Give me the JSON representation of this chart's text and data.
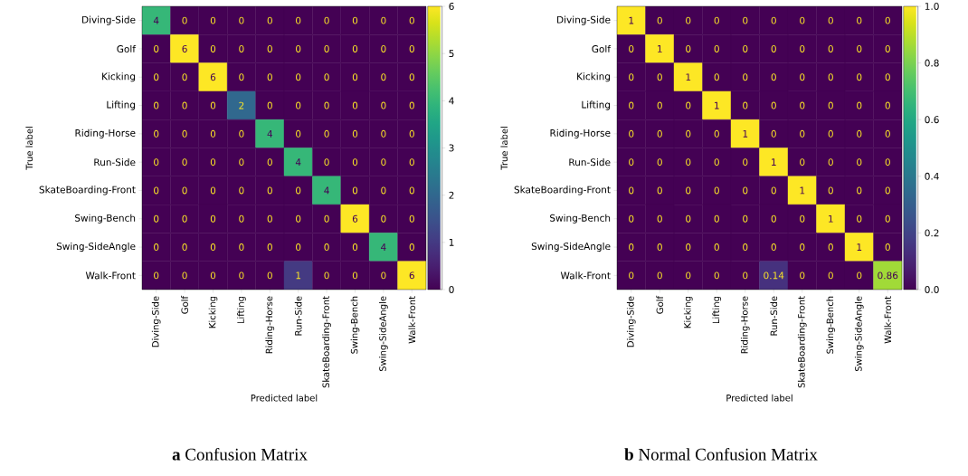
{
  "chart_data": [
    {
      "type": "heatmap",
      "title": "**a** Confusion Matrix",
      "xlabel": "Predicted label",
      "ylabel": "True label",
      "categories": [
        "Diving-Side",
        "Golf",
        "Kicking",
        "Lifting",
        "Riding-Horse",
        "Run-Side",
        "SkateBoarding-Front",
        "Swing-Bench",
        "Swing-SideAngle",
        "Walk-Front"
      ],
      "y_categories": [
        "Diving-Side",
        "Golf",
        "Kicking",
        "Lifting",
        "Riding-Horse",
        "Run-Side",
        "SkateBoarding-Front",
        "Swing-Bench",
        "Swing-SideAngle",
        "Walk-Front"
      ],
      "cells": [
        [
          4,
          0,
          0,
          0,
          0,
          0,
          0,
          0,
          0,
          0
        ],
        [
          0,
          6,
          0,
          0,
          0,
          0,
          0,
          0,
          0,
          0
        ],
        [
          0,
          0,
          6,
          0,
          0,
          0,
          0,
          0,
          0,
          0
        ],
        [
          0,
          0,
          0,
          2,
          0,
          0,
          0,
          0,
          0,
          0
        ],
        [
          0,
          0,
          0,
          0,
          4,
          0,
          0,
          0,
          0,
          0
        ],
        [
          0,
          0,
          0,
          0,
          0,
          4,
          0,
          0,
          0,
          0
        ],
        [
          0,
          0,
          0,
          0,
          0,
          0,
          4,
          0,
          0,
          0
        ],
        [
          0,
          0,
          0,
          0,
          0,
          0,
          0,
          6,
          0,
          0
        ],
        [
          0,
          0,
          0,
          0,
          0,
          0,
          0,
          0,
          4,
          0
        ],
        [
          0,
          0,
          0,
          0,
          0,
          1,
          0,
          0,
          0,
          6
        ]
      ],
      "clim": [
        0,
        6
      ],
      "cticks": [
        0,
        1,
        2,
        3,
        4,
        5,
        6
      ],
      "data_labels": true
    },
    {
      "type": "heatmap",
      "title": "**b** Normal Confusion Matrix",
      "xlabel": "Predicted label",
      "ylabel": "True label",
      "categories": [
        "Diving-Side",
        "Golf",
        "Kicking",
        "Lifting",
        "Riding-Horse",
        "Run-Side",
        "SkateBoarding-Front",
        "Swing-Bench",
        "Swing-SideAngle",
        "Walk-Front"
      ],
      "y_categories": [
        "Diving-Side",
        "Golf",
        "Kicking",
        "Lifting",
        "Riding-Horse",
        "Run-Side",
        "SkateBoarding-Front",
        "Swing-Bench",
        "Swing-SideAngle",
        "Walk-Front"
      ],
      "cells": [
        [
          1,
          0,
          0,
          0,
          0,
          0,
          0,
          0,
          0,
          0
        ],
        [
          0,
          1,
          0,
          0,
          0,
          0,
          0,
          0,
          0,
          0
        ],
        [
          0,
          0,
          1,
          0,
          0,
          0,
          0,
          0,
          0,
          0
        ],
        [
          0,
          0,
          0,
          1,
          0,
          0,
          0,
          0,
          0,
          0
        ],
        [
          0,
          0,
          0,
          0,
          1,
          0,
          0,
          0,
          0,
          0
        ],
        [
          0,
          0,
          0,
          0,
          0,
          1,
          0,
          0,
          0,
          0
        ],
        [
          0,
          0,
          0,
          0,
          0,
          0,
          1,
          0,
          0,
          0
        ],
        [
          0,
          0,
          0,
          0,
          0,
          0,
          0,
          1,
          0,
          0
        ],
        [
          0,
          0,
          0,
          0,
          0,
          0,
          0,
          0,
          1,
          0
        ],
        [
          0,
          0,
          0,
          0,
          0,
          0.14,
          0,
          0,
          0,
          0.86
        ]
      ],
      "clim": [
        0,
        1.0
      ],
      "cticks": [
        {
          "value": 0,
          "label": "0.0"
        },
        {
          "value": 0.2,
          "label": "0.2"
        },
        {
          "value": 0.4,
          "label": "0.4"
        },
        {
          "value": 0.6,
          "label": "0.6"
        },
        {
          "value": 0.8,
          "label": "0.8"
        },
        {
          "value": 1.0,
          "label": "1.0"
        }
      ],
      "data_labels": true
    }
  ]
}
